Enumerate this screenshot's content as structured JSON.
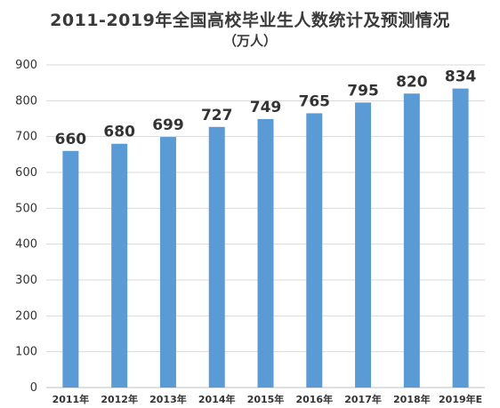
{
  "chart_data": {
    "type": "bar",
    "title": "2011-2019年全国高校毕业生人数统计及预测情况",
    "subtitle": "（万人）",
    "categories": [
      "2011年",
      "2012年",
      "2013年",
      "2014年",
      "2015年",
      "2016年",
      "2017年",
      "2018年",
      "2019年E"
    ],
    "values": [
      660,
      680,
      699,
      727,
      749,
      765,
      795,
      820,
      834
    ],
    "data_labels": [
      "660",
      "680",
      "699",
      "727",
      "749",
      "765",
      "795",
      "820",
      "834"
    ],
    "yticks": [
      "0",
      "100",
      "200",
      "300",
      "400",
      "500",
      "600",
      "700",
      "800",
      "900"
    ],
    "ylim": [
      0,
      900
    ],
    "grid": true,
    "legend": "none",
    "colors": {
      "bar": "#5b9bd5",
      "grid": "#d9d9d9",
      "text": "#333333"
    }
  }
}
